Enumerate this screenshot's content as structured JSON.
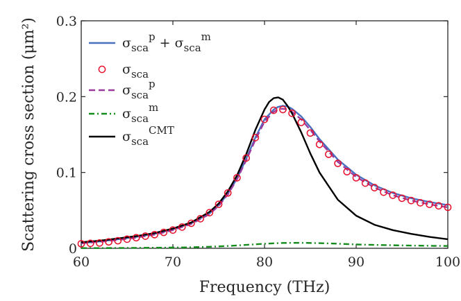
{
  "chart_data": {
    "type": "line",
    "title": "",
    "xlabel": "Frequency (THz)",
    "ylabel": "Scattering cross section (μm²)",
    "xlim": [
      60,
      100
    ],
    "ylim": [
      0,
      0.3
    ],
    "xticks": [
      "60",
      "70",
      "80",
      "90",
      "100"
    ],
    "yticks": [
      "0",
      "0.1",
      "0.2",
      "0.3"
    ],
    "grid": false,
    "legend_position": "top-left",
    "series": [
      {
        "name": "sigma_sca^p + sigma_sca^m",
        "legend_main": "σ",
        "legend_sub": "sca",
        "legend_sup": "p",
        "legend_rest": " + σ",
        "legend_sub2": "sca",
        "legend_sup2": "m",
        "style": "solid",
        "color": "#4a6fbf",
        "x": [
          60,
          62,
          64,
          66,
          68,
          70,
          72,
          74,
          75,
          76,
          77,
          78,
          79,
          80,
          81,
          81.5,
          82,
          82.5,
          83,
          84,
          85,
          86,
          88,
          90,
          92,
          94,
          96,
          98,
          100
        ],
        "y": [
          0.007,
          0.009,
          0.012,
          0.015,
          0.019,
          0.025,
          0.033,
          0.046,
          0.057,
          0.072,
          0.092,
          0.118,
          0.146,
          0.17,
          0.183,
          0.1865,
          0.188,
          0.187,
          0.184,
          0.174,
          0.16,
          0.144,
          0.117,
          0.097,
          0.083,
          0.073,
          0.066,
          0.061,
          0.057
        ]
      },
      {
        "name": "sigma_sca",
        "legend_main": "σ",
        "legend_sub": "sca",
        "style": "circles",
        "color": "#e8102c",
        "x": [
          60,
          61,
          62,
          63,
          64,
          65,
          66,
          67,
          68,
          69,
          70,
          71,
          72,
          73,
          74,
          75,
          76,
          77,
          78,
          79,
          80,
          81,
          82,
          83,
          84,
          85,
          86,
          87,
          88,
          89,
          90,
          91,
          92,
          93,
          94,
          95,
          96,
          97,
          98,
          99,
          100
        ],
        "y": [
          0.006,
          0.0065,
          0.007,
          0.0085,
          0.01,
          0.012,
          0.014,
          0.016,
          0.018,
          0.021,
          0.024,
          0.028,
          0.033,
          0.039,
          0.047,
          0.058,
          0.073,
          0.093,
          0.119,
          0.146,
          0.17,
          0.182,
          0.183,
          0.178,
          0.166,
          0.152,
          0.137,
          0.124,
          0.112,
          0.101,
          0.093,
          0.086,
          0.08,
          0.074,
          0.07,
          0.066,
          0.063,
          0.06,
          0.058,
          0.056,
          0.054
        ]
      },
      {
        "name": "sigma_sca^p",
        "legend_main": "σ",
        "legend_sub": "sca",
        "legend_sup": "p",
        "style": "dashed",
        "color": "#9b3b9e",
        "x": [
          60,
          62,
          64,
          66,
          68,
          70,
          72,
          74,
          75,
          76,
          77,
          78,
          79,
          80,
          81,
          81.5,
          82,
          82.5,
          83,
          84,
          85,
          86,
          88,
          90,
          92,
          94,
          96,
          98,
          100
        ],
        "y": [
          0.0065,
          0.0085,
          0.011,
          0.014,
          0.018,
          0.024,
          0.032,
          0.045,
          0.056,
          0.071,
          0.091,
          0.116,
          0.143,
          0.167,
          0.18,
          0.183,
          0.184,
          0.183,
          0.18,
          0.17,
          0.156,
          0.141,
          0.114,
          0.094,
          0.08,
          0.07,
          0.063,
          0.058,
          0.054
        ]
      },
      {
        "name": "sigma_sca^m",
        "legend_main": "σ",
        "legend_sub": "sca",
        "legend_sup": "m",
        "style": "dashdot",
        "color": "#138c1c",
        "x": [
          60,
          64,
          68,
          72,
          74,
          76,
          78,
          80,
          82,
          84,
          86,
          88,
          90,
          92,
          94,
          96,
          98,
          100
        ],
        "y": [
          0.0003,
          0.0004,
          0.0007,
          0.0013,
          0.002,
          0.003,
          0.0045,
          0.006,
          0.007,
          0.0072,
          0.0068,
          0.006,
          0.005,
          0.0045,
          0.004,
          0.0036,
          0.0033,
          0.003
        ]
      },
      {
        "name": "sigma_sca^CMT",
        "legend_main": "σ",
        "legend_sub": "sca",
        "legend_sup": "CMT",
        "style": "solid",
        "color": "#000000",
        "x": [
          60,
          62,
          64,
          66,
          68,
          70,
          72,
          74,
          75,
          76,
          77,
          78,
          79,
          80,
          80.5,
          81,
          81.5,
          82,
          82.5,
          83,
          84,
          85,
          86,
          88,
          90,
          92,
          94,
          96,
          98,
          100
        ],
        "y": [
          0.008,
          0.01,
          0.013,
          0.016,
          0.02,
          0.026,
          0.034,
          0.048,
          0.059,
          0.075,
          0.096,
          0.124,
          0.156,
          0.183,
          0.193,
          0.198,
          0.199,
          0.196,
          0.188,
          0.178,
          0.153,
          0.125,
          0.1,
          0.064,
          0.043,
          0.031,
          0.024,
          0.019,
          0.015,
          0.012
        ]
      }
    ]
  }
}
